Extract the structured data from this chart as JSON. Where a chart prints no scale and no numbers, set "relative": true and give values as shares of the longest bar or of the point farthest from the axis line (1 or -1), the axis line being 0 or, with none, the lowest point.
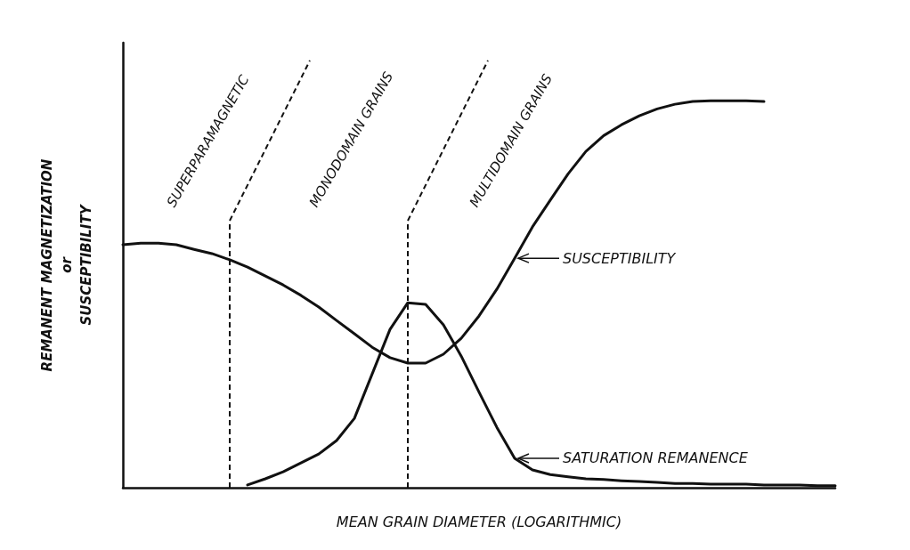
{
  "chart_data": {
    "type": "line",
    "relative": true,
    "xlabel": "MEAN GRAIN DIAMETER (LOGARITHMIC)",
    "ylabel": "REMANENT MAGNETIZATION\nor\nSUSCEPTIBILITY",
    "categories": [
      null,
      null,
      null,
      null,
      null,
      null,
      null,
      null,
      null,
      null,
      null,
      null,
      null,
      null,
      null,
      null,
      null,
      null,
      null,
      null,
      null,
      null,
      null,
      null,
      null,
      null,
      null,
      null,
      null,
      null,
      null,
      null,
      null,
      null,
      null,
      null,
      null,
      null,
      null,
      null,
      null
    ],
    "series": [
      {
        "name": "SUSCEPTIBILITY",
        "color": "#111111",
        "values": [
          0.628,
          0.632,
          0.632,
          0.628,
          0.616,
          0.605,
          0.589,
          0.57,
          0.547,
          0.524,
          0.497,
          0.467,
          0.432,
          0.398,
          0.363,
          0.336,
          0.322,
          0.322,
          0.345,
          0.386,
          0.444,
          0.513,
          0.593,
          0.674,
          0.743,
          0.811,
          0.869,
          0.91,
          0.938,
          0.961,
          0.979,
          0.991,
          0.998,
          1,
          1,
          1,
          0.998,
          null,
          null,
          null,
          null
        ]
      },
      {
        "name": "SATURATION REMANENCE",
        "color": "#111111",
        "values": [
          null,
          null,
          null,
          null,
          null,
          null,
          null,
          0.007,
          0.023,
          0.041,
          0.064,
          0.087,
          0.122,
          0.179,
          0.294,
          0.409,
          0.478,
          0.474,
          0.421,
          0.34,
          0.247,
          0.156,
          0.076,
          0.046,
          0.034,
          0.028,
          0.023,
          0.021,
          0.018,
          0.016,
          0.014,
          0.011,
          0.011,
          0.009,
          0.009,
          0.009,
          0.007,
          0.007,
          0.007,
          0.005,
          0.005
        ]
      }
    ],
    "annotations": [
      "SUPERPARAMAGNETIC",
      "MONODOMAIN GRAINS",
      "MULTIDOMAIN GRAINS"
    ],
    "grid": false,
    "legend": "right",
    "marker": "none",
    "line_style": "solid"
  }
}
